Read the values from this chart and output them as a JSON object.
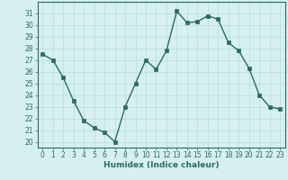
{
  "x": [
    0,
    1,
    2,
    3,
    4,
    5,
    6,
    7,
    8,
    9,
    10,
    11,
    12,
    13,
    14,
    15,
    16,
    17,
    18,
    19,
    20,
    21,
    22,
    23
  ],
  "y": [
    27.5,
    27.0,
    25.5,
    23.5,
    21.8,
    21.2,
    20.8,
    20.0,
    23.0,
    25.0,
    27.0,
    26.2,
    27.8,
    31.2,
    30.2,
    30.3,
    30.8,
    30.5,
    28.5,
    27.8,
    26.3,
    24.0,
    23.0,
    22.8
  ],
  "line_color": "#2d6b5e",
  "marker": "s",
  "marker_size": 2.5,
  "bg_color": "#d5f0ef",
  "grid_color": "#b8dcda",
  "xlabel": "Humidex (Indice chaleur)",
  "ylim": [
    19.5,
    32.0
  ],
  "xlim": [
    -0.5,
    23.5
  ],
  "yticks": [
    20,
    21,
    22,
    23,
    24,
    25,
    26,
    27,
    28,
    29,
    30,
    31
  ],
  "xticks": [
    0,
    1,
    2,
    3,
    4,
    5,
    6,
    7,
    8,
    9,
    10,
    11,
    12,
    13,
    14,
    15,
    16,
    17,
    18,
    19,
    20,
    21,
    22,
    23
  ],
  "tick_label_fontsize": 5.5,
  "xlabel_fontsize": 6.5,
  "spine_color": "#2d6b5e",
  "linewidth": 1.0
}
